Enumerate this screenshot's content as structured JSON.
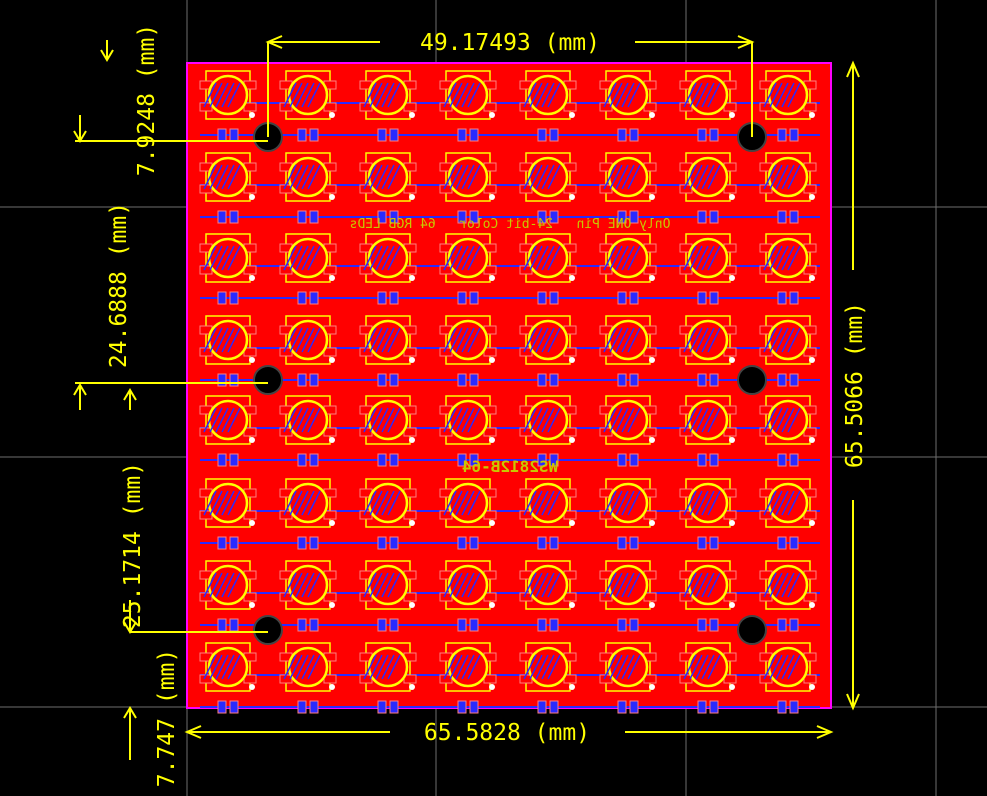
{
  "dimensions": {
    "top_width": "49.17493 (mm)",
    "bottom_width": "65.5828 (mm)",
    "right_height": "65.5066 (mm)",
    "left_top": "7.9248 (mm)",
    "left_upper": "24.6888 (mm)",
    "left_lower": "25.1714 (mm)",
    "left_bottom": "7.747 (mm)"
  },
  "silkscreen": {
    "tagline": "Only ONE Pin   24-bit Color   64 RGB LEDs",
    "name": "WS2812B-64"
  }
}
